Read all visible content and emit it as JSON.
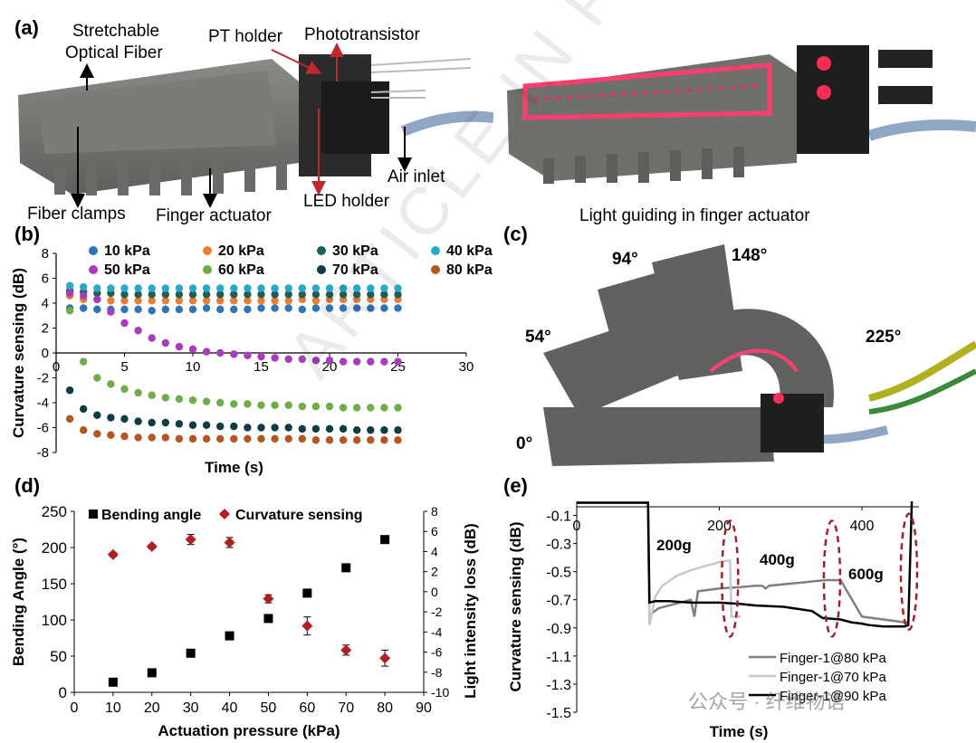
{
  "panel_a": {
    "label": "(a)",
    "labels": {
      "stretchable": "Stretchable",
      "optical_fiber": "Optical Fiber",
      "pt_holder": "PT holder",
      "phototransistor": "Phototransistor",
      "air_inlet": "Air inlet",
      "fiber_clamps": "Fiber clamps",
      "finger_actuator": "Finger actuator",
      "led_holder": "LED holder",
      "light_guiding": "Light guiding in finger actuator"
    }
  },
  "panel_c": {
    "label": "(c)",
    "angles": [
      "94°",
      "148°",
      "54°",
      "225°",
      "0°"
    ]
  },
  "watermark": "ARTICLE IN PRESS",
  "footer_watermark": "公众号 · 纤维物语",
  "chart_data": [
    {
      "panel": "(b)",
      "type": "scatter",
      "xlabel": "Time (s)",
      "ylabel": "Curvature sensing (dB)",
      "xlim": [
        0,
        30
      ],
      "ylim": [
        -8,
        8
      ],
      "xticks": [
        0,
        5,
        10,
        15,
        20,
        25,
        30
      ],
      "yticks": [
        -8,
        -6,
        -4,
        -2,
        0,
        2,
        4,
        6,
        8
      ],
      "legend": "top, 4 columns",
      "series": [
        {
          "name": "10 kPa",
          "color": "#2e75b6",
          "x": [
            1,
            2,
            3,
            4,
            5,
            6,
            7,
            8,
            9,
            10,
            11,
            12,
            13,
            14,
            15,
            16,
            17,
            18,
            19,
            20,
            21,
            22,
            23,
            24,
            25
          ],
          "y": [
            3.6,
            3.6,
            3.5,
            3.5,
            3.5,
            3.5,
            3.4,
            3.5,
            3.5,
            3.5,
            3.6,
            3.5,
            3.5,
            3.5,
            3.6,
            3.6,
            3.6,
            3.5,
            3.6,
            3.6,
            3.6,
            3.6,
            3.6,
            3.6,
            3.6
          ]
        },
        {
          "name": "20 kPa",
          "color": "#ed7d31",
          "x": [
            1,
            2,
            3,
            4,
            5,
            6,
            7,
            8,
            9,
            10,
            11,
            12,
            13,
            14,
            15,
            16,
            17,
            18,
            19,
            20,
            21,
            22,
            23,
            24,
            25
          ],
          "y": [
            4.6,
            4.3,
            4.3,
            4.2,
            4.2,
            4.2,
            4.2,
            4.2,
            4.2,
            4.2,
            4.2,
            4.2,
            4.2,
            4.2,
            4.2,
            4.2,
            4.2,
            4.3,
            4.2,
            4.3,
            4.3,
            4.3,
            4.3,
            4.3,
            4.3
          ]
        },
        {
          "name": "30 kPa",
          "color": "#1f5f5b",
          "x": [
            1,
            2,
            3,
            4,
            5,
            6,
            7,
            8,
            9,
            10,
            11,
            12,
            13,
            14,
            15,
            16,
            17,
            18,
            19,
            20,
            21,
            22,
            23,
            24,
            25
          ],
          "y": [
            5.0,
            4.9,
            4.8,
            4.8,
            4.7,
            4.7,
            4.7,
            4.7,
            4.7,
            4.7,
            4.7,
            4.7,
            4.7,
            4.7,
            4.7,
            4.7,
            4.7,
            4.7,
            4.7,
            4.7,
            4.7,
            4.7,
            4.7,
            4.7,
            4.7
          ]
        },
        {
          "name": "40 kPa",
          "color": "#27a9c9",
          "x": [
            1,
            2,
            3,
            4,
            5,
            6,
            7,
            8,
            9,
            10,
            11,
            12,
            13,
            14,
            15,
            16,
            17,
            18,
            19,
            20,
            21,
            22,
            23,
            24,
            25
          ],
          "y": [
            5.4,
            5.3,
            5.2,
            5.2,
            5.2,
            5.2,
            5.2,
            5.2,
            5.2,
            5.2,
            5.2,
            5.2,
            5.2,
            5.2,
            5.2,
            5.2,
            5.2,
            5.2,
            5.2,
            5.2,
            5.2,
            5.2,
            5.2,
            5.2,
            5.2
          ]
        },
        {
          "name": "50 kPa",
          "color": "#a93cbd",
          "x": [
            1,
            2,
            3,
            4,
            5,
            6,
            7,
            8,
            9,
            10,
            11,
            12,
            13,
            14,
            15,
            16,
            17,
            18,
            19,
            20,
            21,
            22,
            23,
            24,
            25
          ],
          "y": [
            4.8,
            4.6,
            4.3,
            3.3,
            2.4,
            1.8,
            1.2,
            0.8,
            0.5,
            0.3,
            0.1,
            0.0,
            -0.1,
            -0.2,
            -0.3,
            -0.4,
            -0.5,
            -0.5,
            -0.6,
            -0.6,
            -0.7,
            -0.7,
            -0.7,
            -0.7,
            -0.7
          ]
        },
        {
          "name": "60 kPa",
          "color": "#70ad47",
          "x": [
            1,
            2,
            3,
            4,
            5,
            6,
            7,
            8,
            9,
            10,
            11,
            12,
            13,
            14,
            15,
            16,
            17,
            18,
            19,
            20,
            21,
            22,
            23,
            24,
            25
          ],
          "y": [
            3.4,
            -0.7,
            -2.0,
            -2.5,
            -2.9,
            -3.2,
            -3.4,
            -3.6,
            -3.7,
            -3.8,
            -3.9,
            -4.0,
            -4.1,
            -4.1,
            -4.2,
            -4.2,
            -4.2,
            -4.3,
            -4.3,
            -4.3,
            -4.4,
            -4.4,
            -4.4,
            -4.4,
            -4.4
          ]
        },
        {
          "name": "70 kPa",
          "color": "#0f3b44",
          "x": [
            1,
            2,
            3,
            4,
            5,
            6,
            7,
            8,
            9,
            10,
            11,
            12,
            13,
            14,
            15,
            16,
            17,
            18,
            19,
            20,
            21,
            22,
            23,
            24,
            25
          ],
          "y": [
            -3.0,
            -4.5,
            -5.0,
            -5.2,
            -5.3,
            -5.5,
            -5.6,
            -5.6,
            -5.7,
            -5.8,
            -5.8,
            -5.9,
            -5.9,
            -6.0,
            -6.0,
            -6.0,
            -6.0,
            -6.1,
            -6.1,
            -6.1,
            -6.1,
            -6.2,
            -6.2,
            -6.2,
            -6.2
          ]
        },
        {
          "name": "80 kPa",
          "color": "#b5561f",
          "x": [
            1,
            2,
            3,
            4,
            5,
            6,
            7,
            8,
            9,
            10,
            11,
            12,
            13,
            14,
            15,
            16,
            17,
            18,
            19,
            20,
            21,
            22,
            23,
            24,
            25
          ],
          "y": [
            -5.3,
            -6.2,
            -6.5,
            -6.6,
            -6.7,
            -6.8,
            -6.8,
            -6.8,
            -6.9,
            -6.9,
            -6.9,
            -6.9,
            -6.9,
            -6.9,
            -6.9,
            -6.9,
            -6.9,
            -6.9,
            -7.0,
            -7.0,
            -7.0,
            -7.0,
            -7.0,
            -7.0,
            -7.0
          ]
        }
      ]
    },
    {
      "panel": "(d)",
      "type": "scatter",
      "xlabel": "Actuation pressure (kPa)",
      "ylabel": "Bending Angle (°)",
      "y2label": "Light intensity loss (dB)",
      "xlim": [
        0,
        90
      ],
      "ylim": [
        0,
        250
      ],
      "y2lim": [
        -10,
        8
      ],
      "xticks": [
        0,
        10,
        20,
        30,
        40,
        50,
        60,
        70,
        80,
        90
      ],
      "yticks": [
        0,
        50,
        100,
        150,
        200,
        250
      ],
      "y2ticks": [
        -10,
        -8,
        -6,
        -4,
        -2,
        0,
        2,
        4,
        6,
        8
      ],
      "legend": "top",
      "series": [
        {
          "name": "Bending angle",
          "axis": "left",
          "color": "#000000",
          "x": [
            10,
            20,
            30,
            40,
            50,
            60,
            70,
            80
          ],
          "y": [
            14,
            27,
            54,
            78,
            102,
            137,
            172,
            211
          ]
        },
        {
          "name": "Curvature sensing",
          "axis": "right",
          "color": "#b01f24",
          "x": [
            10,
            20,
            30,
            40,
            50,
            60,
            70,
            80
          ],
          "y": [
            3.7,
            4.5,
            5.2,
            4.9,
            -0.7,
            -3.4,
            -5.8,
            -6.6
          ],
          "err": [
            0.2,
            0.2,
            0.5,
            0.5,
            0.4,
            0.9,
            0.5,
            0.8
          ]
        }
      ]
    },
    {
      "panel": "(e)",
      "type": "line",
      "xlabel": "Time (s)",
      "ylabel": "Curvature sensing (dB)",
      "xlim": [
        0,
        480
      ],
      "ylim": [
        -1.5,
        0
      ],
      "xticks": [
        0,
        200,
        400
      ],
      "yticks": [
        -0.1,
        -0.3,
        -0.5,
        -0.7,
        -0.9,
        -1.1,
        -1.3,
        -1.5
      ],
      "annotations": [
        "200g",
        "400g",
        "600g"
      ],
      "legend": "bottom-right",
      "series": [
        {
          "name": "Finger-1@80 kPa",
          "color": "#808080",
          "x": [
            0,
            100,
            102,
            104,
            115,
            130,
            145,
            160,
            165,
            170,
            200,
            230,
            250,
            260,
            265,
            270,
            290,
            310,
            330,
            350,
            370,
            400,
            430,
            460,
            466
          ],
          "y": [
            -0.01,
            -0.01,
            -0.86,
            -0.8,
            -0.76,
            -0.74,
            -0.72,
            -0.7,
            -0.82,
            -0.64,
            -0.62,
            -0.61,
            -0.6,
            -0.6,
            -0.62,
            -0.6,
            -0.59,
            -0.58,
            -0.57,
            -0.56,
            -0.56,
            -0.82,
            -0.84,
            -0.86,
            -0.86
          ]
        },
        {
          "name": "Finger-1@70 kPa",
          "color": "#c8c8c8",
          "x": [
            0,
            100,
            102,
            110,
            120,
            140,
            160,
            180,
            195,
            200,
            215,
            217,
            230
          ],
          "y": [
            -0.01,
            -0.01,
            -0.88,
            -0.68,
            -0.6,
            -0.53,
            -0.49,
            -0.46,
            -0.44,
            -0.43,
            -0.42,
            -0.82,
            -0.82
          ]
        },
        {
          "name": "Finger-1@90 kPa",
          "color": "#000000",
          "x": [
            0,
            100,
            102,
            110,
            130,
            160,
            200,
            230,
            250,
            290,
            330,
            345,
            370,
            385,
            400,
            410,
            430,
            460,
            465,
            470
          ],
          "y": [
            -0.01,
            -0.01,
            -0.72,
            -0.71,
            -0.71,
            -0.72,
            -0.72,
            -0.73,
            -0.74,
            -0.75,
            -0.78,
            -0.83,
            -0.84,
            -0.86,
            -0.87,
            -0.88,
            -0.89,
            -0.89,
            -0.88,
            0.0
          ]
        }
      ]
    }
  ]
}
